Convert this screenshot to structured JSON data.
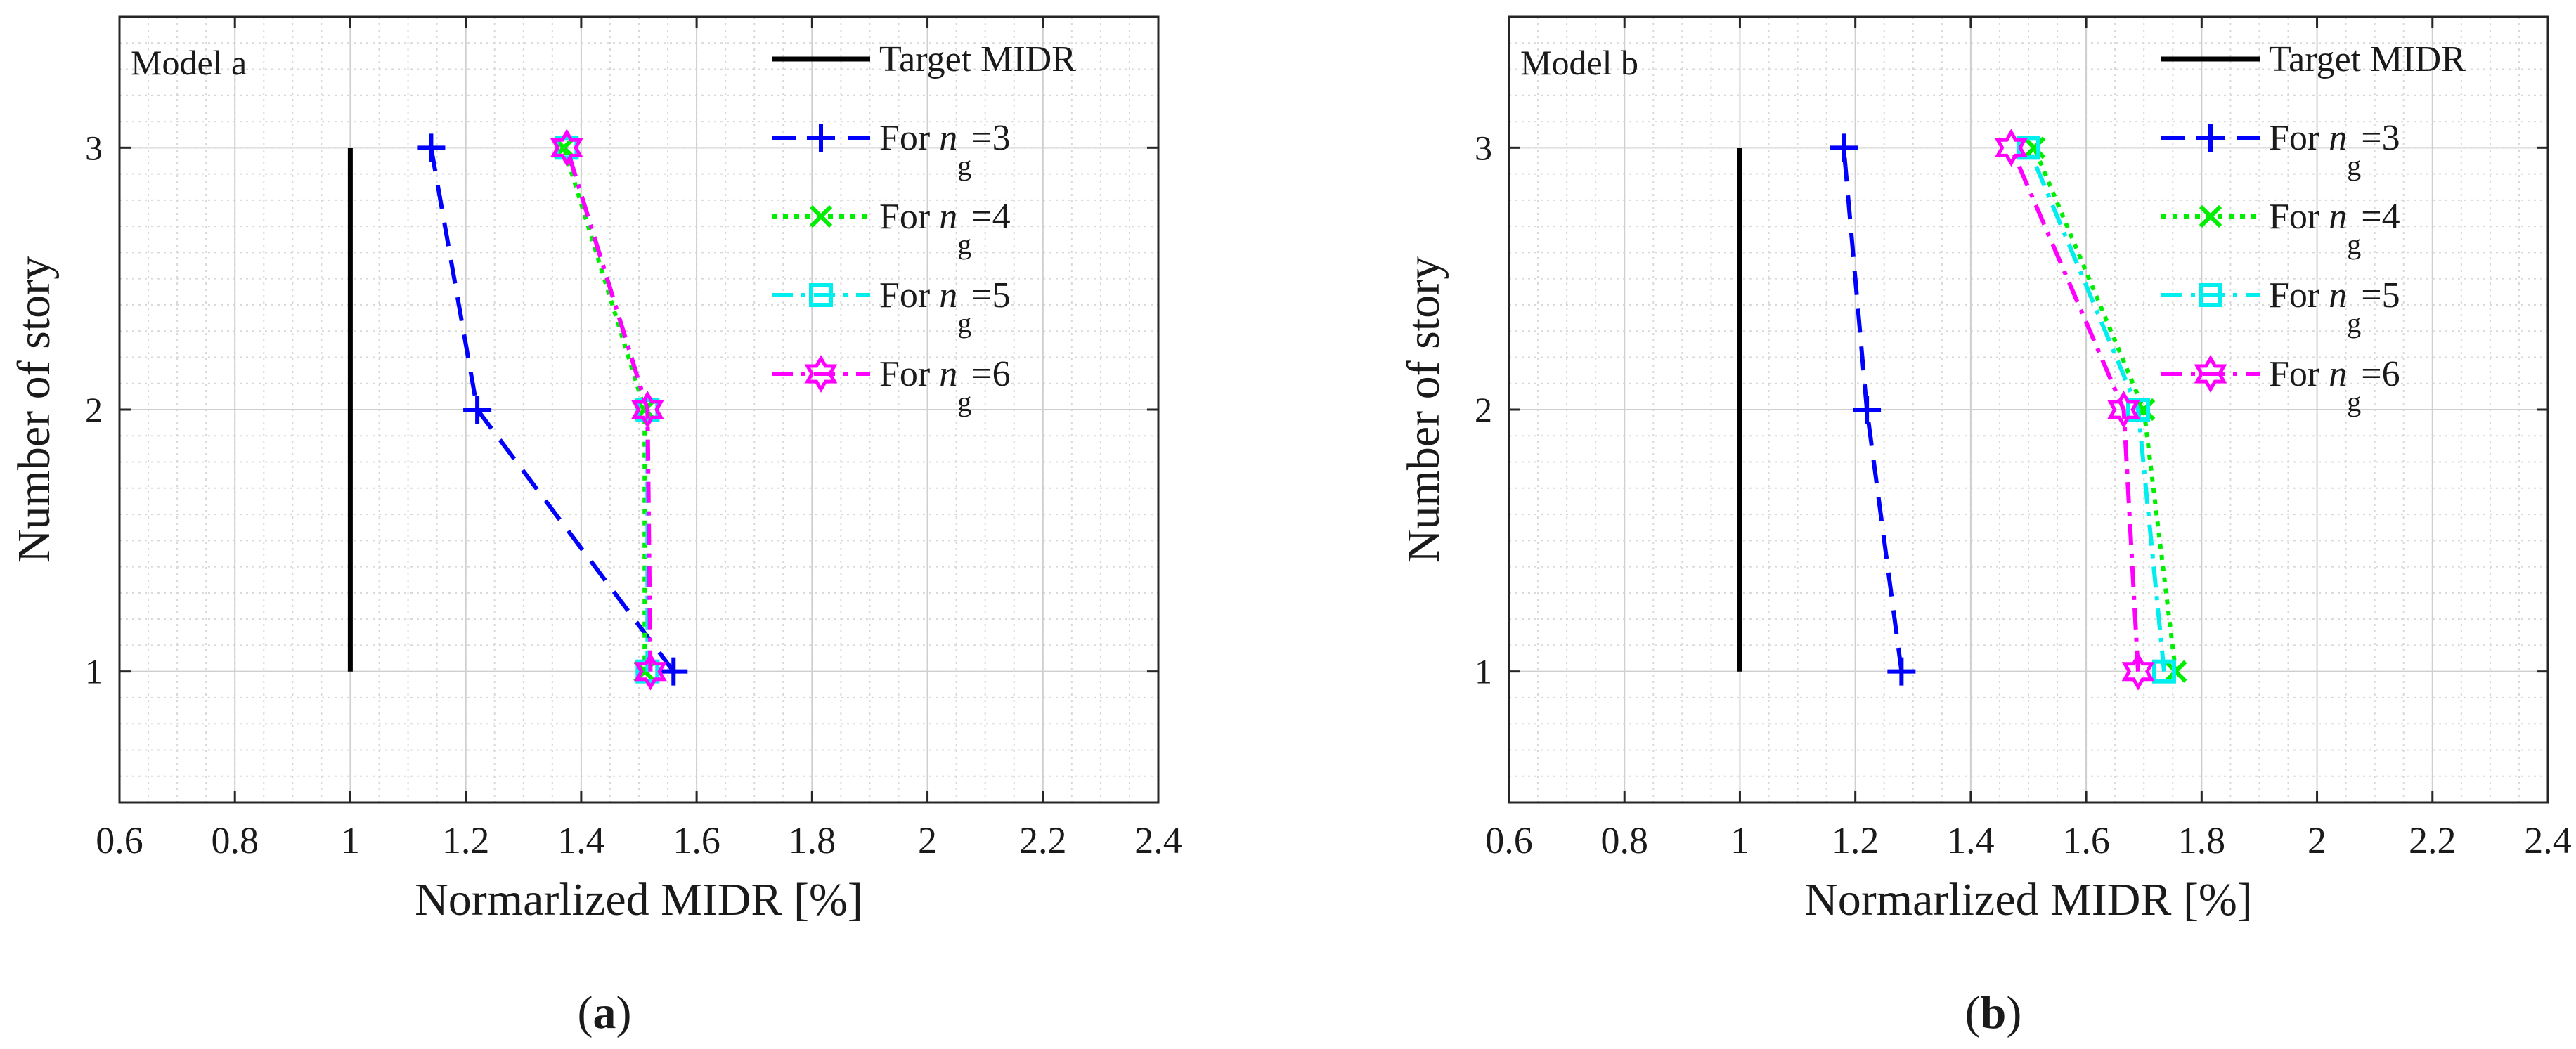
{
  "figure": {
    "caption_prefix": "(",
    "caption_suffix": ")"
  },
  "chart_data": [
    {
      "type": "line",
      "panel_label": "a",
      "title": "Model a",
      "xlabel": "Normarlized MIDR [%]",
      "ylabel": "Number of story",
      "xlim": [
        0.6,
        2.4
      ],
      "ylim": [
        0.5,
        3.5
      ],
      "xticks": [
        0.6,
        0.8,
        1,
        1.2,
        1.4,
        1.6,
        1.8,
        2,
        2.2,
        2.4
      ],
      "xtick_labels": [
        "0.6",
        "0.8",
        "1",
        "1.2",
        "1.4",
        "1.6",
        "1.8",
        "2",
        "2.2",
        "2.4"
      ],
      "yticks": [
        1,
        2,
        3
      ],
      "ytick_labels": [
        "1",
        "2",
        "3"
      ],
      "grid": true,
      "legend_position": "top-right",
      "y": [
        1,
        2,
        3
      ],
      "series": [
        {
          "name": "Target MIDR",
          "legend_prefix": "Target MIDR",
          "legend_sub": "",
          "legend_suffix": "",
          "values": [
            1,
            1,
            1
          ],
          "color": "#000000",
          "dash": "solid",
          "marker": "none"
        },
        {
          "name": "For ng=3",
          "legend_prefix": "For n",
          "legend_sub": "g",
          "legend_suffix": "=3",
          "values": [
            1.56,
            1.22,
            1.14
          ],
          "color": "#0000ff",
          "dash": "dash",
          "marker": "plus"
        },
        {
          "name": "For ng=4",
          "legend_prefix": "For n",
          "legend_sub": "g",
          "legend_suffix": "=4",
          "values": [
            1.51,
            1.51,
            1.37
          ],
          "color": "#00ee00",
          "dash": "dot",
          "marker": "x"
        },
        {
          "name": "For ng=5",
          "legend_prefix": "For n",
          "legend_sub": "g",
          "legend_suffix": "=5",
          "values": [
            1.515,
            1.515,
            1.375
          ],
          "color": "#00eeee",
          "dash": "dashdot",
          "marker": "square"
        },
        {
          "name": "For ng=6",
          "legend_prefix": "For n",
          "legend_sub": "g",
          "legend_suffix": "=6",
          "values": [
            1.52,
            1.515,
            1.375
          ],
          "color": "#ff00ff",
          "dash": "dashdot",
          "marker": "hexagram"
        }
      ]
    },
    {
      "type": "line",
      "panel_label": "b",
      "title": "Model b",
      "xlabel": "Normarlized MIDR [%]",
      "ylabel": "Number of story",
      "xlim": [
        0.6,
        2.4
      ],
      "ylim": [
        0.5,
        3.5
      ],
      "xticks": [
        0.6,
        0.8,
        1,
        1.2,
        1.4,
        1.6,
        1.8,
        2,
        2.2,
        2.4
      ],
      "xtick_labels": [
        "0.6",
        "0.8",
        "1",
        "1.2",
        "1.4",
        "1.6",
        "1.8",
        "2",
        "2.2",
        "2.4"
      ],
      "yticks": [
        1,
        2,
        3
      ],
      "ytick_labels": [
        "1",
        "2",
        "3"
      ],
      "grid": true,
      "legend_position": "top-right",
      "y": [
        1,
        2,
        3
      ],
      "series": [
        {
          "name": "Target MIDR",
          "legend_prefix": "Target MIDR",
          "legend_sub": "",
          "legend_suffix": "",
          "values": [
            1,
            1,
            1
          ],
          "color": "#000000",
          "dash": "solid",
          "marker": "none"
        },
        {
          "name": "For ng=3",
          "legend_prefix": "For n",
          "legend_sub": "g",
          "legend_suffix": "=3",
          "values": [
            1.28,
            1.22,
            1.18
          ],
          "color": "#0000ff",
          "dash": "dash",
          "marker": "plus"
        },
        {
          "name": "For ng=4",
          "legend_prefix": "For n",
          "legend_sub": "g",
          "legend_suffix": "=4",
          "values": [
            1.755,
            1.7,
            1.51
          ],
          "color": "#00ee00",
          "dash": "dot",
          "marker": "x"
        },
        {
          "name": "For ng=5",
          "legend_prefix": "For n",
          "legend_sub": "g",
          "legend_suffix": "=5",
          "values": [
            1.735,
            1.69,
            1.5
          ],
          "color": "#00eeee",
          "dash": "dashdot",
          "marker": "square"
        },
        {
          "name": "For ng=6",
          "legend_prefix": "For n",
          "legend_sub": "g",
          "legend_suffix": "=6",
          "values": [
            1.69,
            1.665,
            1.47
          ],
          "color": "#ff00ff",
          "dash": "dashdot",
          "marker": "hexagram"
        }
      ]
    }
  ]
}
